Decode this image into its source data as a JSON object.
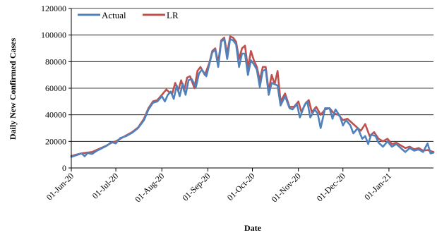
{
  "chart_data": {
    "type": "line",
    "xlabel": "Date",
    "ylabel": "Daily  New  Confirmed Cases",
    "ylim": [
      0,
      120000
    ],
    "y_ticks": [
      0,
      20000,
      40000,
      60000,
      80000,
      100000,
      120000
    ],
    "y_tick_labels": [
      "0",
      "20000",
      "40000",
      "60000",
      "80000",
      "100000",
      "120000"
    ],
    "x_range": [
      "2020-06-01",
      "2021-01-31"
    ],
    "x_tick_labels": [
      "01-Jun-20",
      "01-Jul-20",
      "01-Aug-20",
      "01-Sep-20",
      "01-Oct-20",
      "01-Nov-20",
      "01-Dec-20",
      "01-Jan-21"
    ],
    "x_tick_dates": [
      "2020-06-01",
      "2020-07-01",
      "2020-08-01",
      "2020-09-01",
      "2020-10-01",
      "2020-11-01",
      "2020-12-01",
      "2021-01-01"
    ],
    "grid": "horizontal",
    "legend_position": "top-left",
    "series": [
      {
        "name": "Actual",
        "color": "#4f81bd",
        "points": [
          [
            "2020-06-01",
            8400
          ],
          [
            "2020-06-05",
            9800
          ],
          [
            "2020-06-08",
            11000
          ],
          [
            "2020-06-10",
            8800
          ],
          [
            "2020-06-12",
            11200
          ],
          [
            "2020-06-15",
            10500
          ],
          [
            "2020-06-18",
            12800
          ],
          [
            "2020-06-21",
            14500
          ],
          [
            "2020-06-25",
            16800
          ],
          [
            "2020-06-28",
            19500
          ],
          [
            "2020-07-01",
            18500
          ],
          [
            "2020-07-04",
            22500
          ],
          [
            "2020-07-08",
            24000
          ],
          [
            "2020-07-12",
            26500
          ],
          [
            "2020-07-16",
            30000
          ],
          [
            "2020-07-20",
            36000
          ],
          [
            "2020-07-23",
            44000
          ],
          [
            "2020-07-26",
            49000
          ],
          [
            "2020-07-29",
            50000
          ],
          [
            "2020-08-01",
            54000
          ],
          [
            "2020-08-03",
            50000
          ],
          [
            "2020-08-05",
            55000
          ],
          [
            "2020-08-07",
            57500
          ],
          [
            "2020-08-09",
            52000
          ],
          [
            "2020-08-11",
            62000
          ],
          [
            "2020-08-13",
            54000
          ],
          [
            "2020-08-15",
            63500
          ],
          [
            "2020-08-17",
            55000
          ],
          [
            "2020-08-19",
            66000
          ],
          [
            "2020-08-21",
            67000
          ],
          [
            "2020-08-24",
            61000
          ],
          [
            "2020-08-26",
            71000
          ],
          [
            "2020-08-28",
            74000
          ],
          [
            "2020-08-31",
            69000
          ],
          [
            "2020-09-02",
            78000
          ],
          [
            "2020-09-04",
            87000
          ],
          [
            "2020-09-06",
            89000
          ],
          [
            "2020-09-08",
            76000
          ],
          [
            "2020-09-10",
            95000
          ],
          [
            "2020-09-12",
            97000
          ],
          [
            "2020-09-14",
            82000
          ],
          [
            "2020-09-16",
            97000
          ],
          [
            "2020-09-18",
            96000
          ],
          [
            "2020-09-20",
            93000
          ],
          [
            "2020-09-22",
            76000
          ],
          [
            "2020-09-24",
            86000
          ],
          [
            "2020-09-26",
            86000
          ],
          [
            "2020-09-28",
            70000
          ],
          [
            "2020-09-30",
            81000
          ],
          [
            "2020-10-02",
            78000
          ],
          [
            "2020-10-04",
            74000
          ],
          [
            "2020-10-06",
            61000
          ],
          [
            "2020-10-08",
            73000
          ],
          [
            "2020-10-10",
            74000
          ],
          [
            "2020-10-12",
            55000
          ],
          [
            "2020-10-14",
            64000
          ],
          [
            "2020-10-16",
            63000
          ],
          [
            "2020-10-18",
            62000
          ],
          [
            "2020-10-20",
            47000
          ],
          [
            "2020-10-23",
            54000
          ],
          [
            "2020-10-26",
            45000
          ],
          [
            "2020-10-28",
            44000
          ],
          [
            "2020-10-31",
            48000
          ],
          [
            "2020-11-02",
            38000
          ],
          [
            "2020-11-05",
            47000
          ],
          [
            "2020-11-07",
            50000
          ],
          [
            "2020-11-09",
            38000
          ],
          [
            "2020-11-12",
            44000
          ],
          [
            "2020-11-14",
            41000
          ],
          [
            "2020-11-16",
            30000
          ],
          [
            "2020-11-19",
            45000
          ],
          [
            "2020-11-22",
            45000
          ],
          [
            "2020-11-24",
            37000
          ],
          [
            "2020-11-26",
            44000
          ],
          [
            "2020-11-29",
            39000
          ],
          [
            "2020-12-01",
            32000
          ],
          [
            "2020-12-03",
            36000
          ],
          [
            "2020-12-06",
            32000
          ],
          [
            "2020-12-08",
            26000
          ],
          [
            "2020-12-11",
            30000
          ],
          [
            "2020-12-14",
            22000
          ],
          [
            "2020-12-16",
            24000
          ],
          [
            "2020-12-18",
            18000
          ],
          [
            "2020-12-20",
            25000
          ],
          [
            "2020-12-23",
            24000
          ],
          [
            "2020-12-25",
            19000
          ],
          [
            "2020-12-28",
            16000
          ],
          [
            "2020-12-31",
            20000
          ],
          [
            "2021-01-03",
            16000
          ],
          [
            "2021-01-06",
            18000
          ],
          [
            "2021-01-09",
            15000
          ],
          [
            "2021-01-12",
            12000
          ],
          [
            "2021-01-15",
            15000
          ],
          [
            "2021-01-18",
            13000
          ],
          [
            "2021-01-21",
            14000
          ],
          [
            "2021-01-24",
            12000
          ],
          [
            "2021-01-27",
            18500
          ],
          [
            "2021-01-29",
            11000
          ],
          [
            "2021-01-31",
            11500
          ]
        ]
      },
      {
        "name": "LR",
        "color": "#c0504d",
        "points": [
          [
            "2020-06-01",
            9000
          ],
          [
            "2020-06-05",
            10200
          ],
          [
            "2020-06-08",
            11000
          ],
          [
            "2020-06-12",
            11600
          ],
          [
            "2020-06-15",
            12000
          ],
          [
            "2020-06-18",
            13500
          ],
          [
            "2020-06-21",
            15000
          ],
          [
            "2020-06-25",
            17000
          ],
          [
            "2020-06-28",
            19000
          ],
          [
            "2020-07-01",
            20000
          ],
          [
            "2020-07-04",
            22000
          ],
          [
            "2020-07-08",
            24500
          ],
          [
            "2020-07-12",
            27000
          ],
          [
            "2020-07-16",
            30500
          ],
          [
            "2020-07-20",
            37000
          ],
          [
            "2020-07-23",
            45000
          ],
          [
            "2020-07-26",
            50000
          ],
          [
            "2020-07-29",
            51000
          ],
          [
            "2020-08-01",
            55000
          ],
          [
            "2020-08-04",
            59000
          ],
          [
            "2020-08-06",
            57000
          ],
          [
            "2020-08-08",
            56000
          ],
          [
            "2020-08-10",
            64000
          ],
          [
            "2020-08-12",
            58000
          ],
          [
            "2020-08-14",
            66000
          ],
          [
            "2020-08-16",
            58000
          ],
          [
            "2020-08-18",
            68000
          ],
          [
            "2020-08-20",
            69000
          ],
          [
            "2020-08-23",
            60000
          ],
          [
            "2020-08-25",
            73000
          ],
          [
            "2020-08-27",
            76000
          ],
          [
            "2020-08-30",
            70000
          ],
          [
            "2020-09-02",
            79000
          ],
          [
            "2020-09-04",
            88000
          ],
          [
            "2020-09-06",
            90000
          ],
          [
            "2020-09-08",
            79000
          ],
          [
            "2020-09-10",
            96000
          ],
          [
            "2020-09-12",
            98000
          ],
          [
            "2020-09-14",
            86000
          ],
          [
            "2020-09-16",
            99000
          ],
          [
            "2020-09-18",
            98000
          ],
          [
            "2020-09-20",
            95000
          ],
          [
            "2020-09-22",
            82000
          ],
          [
            "2020-09-24",
            90000
          ],
          [
            "2020-09-26",
            92000
          ],
          [
            "2020-09-28",
            75000
          ],
          [
            "2020-09-30",
            88000
          ],
          [
            "2020-10-02",
            81000
          ],
          [
            "2020-10-04",
            76000
          ],
          [
            "2020-10-06",
            66000
          ],
          [
            "2020-10-08",
            76000
          ],
          [
            "2020-10-10",
            76000
          ],
          [
            "2020-10-12",
            58000
          ],
          [
            "2020-10-14",
            70000
          ],
          [
            "2020-10-16",
            63000
          ],
          [
            "2020-10-18",
            73000
          ],
          [
            "2020-10-20",
            50000
          ],
          [
            "2020-10-23",
            56000
          ],
          [
            "2020-10-26",
            46000
          ],
          [
            "2020-10-29",
            46000
          ],
          [
            "2020-11-01",
            50000
          ],
          [
            "2020-11-03",
            42000
          ],
          [
            "2020-11-06",
            49000
          ],
          [
            "2020-11-08",
            51000
          ],
          [
            "2020-11-10",
            42000
          ],
          [
            "2020-11-13",
            46000
          ],
          [
            "2020-11-16",
            40000
          ],
          [
            "2020-11-19",
            44000
          ],
          [
            "2020-11-22",
            45000
          ],
          [
            "2020-11-25",
            41000
          ],
          [
            "2020-11-28",
            40000
          ],
          [
            "2020-12-01",
            36000
          ],
          [
            "2020-12-04",
            37000
          ],
          [
            "2020-12-07",
            34000
          ],
          [
            "2020-12-10",
            31000
          ],
          [
            "2020-12-13",
            28000
          ],
          [
            "2020-12-16",
            33000
          ],
          [
            "2020-12-19",
            24000
          ],
          [
            "2020-12-22",
            27000
          ],
          [
            "2020-12-25",
            22000
          ],
          [
            "2020-12-28",
            20000
          ],
          [
            "2020-12-31",
            22000
          ],
          [
            "2021-01-03",
            18000
          ],
          [
            "2021-01-06",
            19000
          ],
          [
            "2021-01-09",
            17000
          ],
          [
            "2021-01-12",
            15000
          ],
          [
            "2021-01-15",
            16000
          ],
          [
            "2021-01-18",
            14000
          ],
          [
            "2021-01-21",
            15000
          ],
          [
            "2021-01-24",
            13000
          ],
          [
            "2021-01-27",
            13500
          ],
          [
            "2021-01-31",
            12000
          ]
        ]
      }
    ]
  }
}
